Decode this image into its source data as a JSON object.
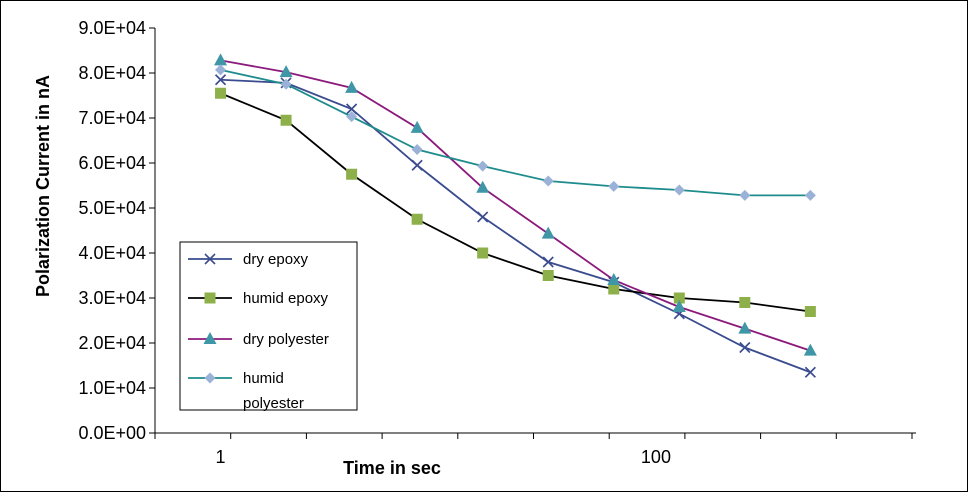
{
  "chart_data": {
    "type": "line",
    "title": "",
    "xlabel": "Time in sec",
    "ylabel": "Polarization Current in nA",
    "x_scale": "log",
    "x": [
      1,
      2,
      4,
      8,
      16,
      32,
      64,
      128,
      256,
      512
    ],
    "x_tick_labels": [
      "1",
      "100"
    ],
    "xlim": [
      0.5,
      1500
    ],
    "ylim": [
      0,
      90000
    ],
    "y_ticks": [
      0,
      10000,
      20000,
      30000,
      40000,
      50000,
      60000,
      70000,
      80000,
      90000
    ],
    "y_tick_labels": [
      "0.0E+00",
      "1.0E+04",
      "2.0E+04",
      "3.0E+04",
      "4.0E+04",
      "5.0E+04",
      "6.0E+04",
      "7.0E+04",
      "8.0E+04",
      "9.0E+04"
    ],
    "grid": false,
    "legend_position": "bottom-left",
    "series": [
      {
        "name": "dry epoxy",
        "color": "#3A4B8E",
        "marker": "x",
        "values": [
          78500,
          77800,
          72000,
          59500,
          48000,
          38000,
          33500,
          26500,
          19000,
          13500
        ]
      },
      {
        "name": "humid epoxy",
        "color": "#000000",
        "marker_color": "#8DB04A",
        "marker": "square",
        "values": [
          75500,
          69500,
          57500,
          47500,
          40000,
          35000,
          32000,
          30000,
          29000,
          27000
        ]
      },
      {
        "name": "dry polyester",
        "color": "#8B1A7C",
        "marker_color": "#3E96A6",
        "marker": "triangle",
        "values": [
          82800,
          80200,
          76700,
          67800,
          54500,
          44300,
          34000,
          28000,
          23200,
          18300
        ]
      },
      {
        "name": "humid polyester",
        "legend_lines": [
          "humid",
          "polyester"
        ],
        "color": "#1E8C8C",
        "marker_color": "#9AB1D8",
        "marker": "diamond",
        "values": [
          80700,
          77500,
          70300,
          63000,
          59300,
          56000,
          54800,
          54000,
          52800,
          52800
        ]
      }
    ]
  }
}
